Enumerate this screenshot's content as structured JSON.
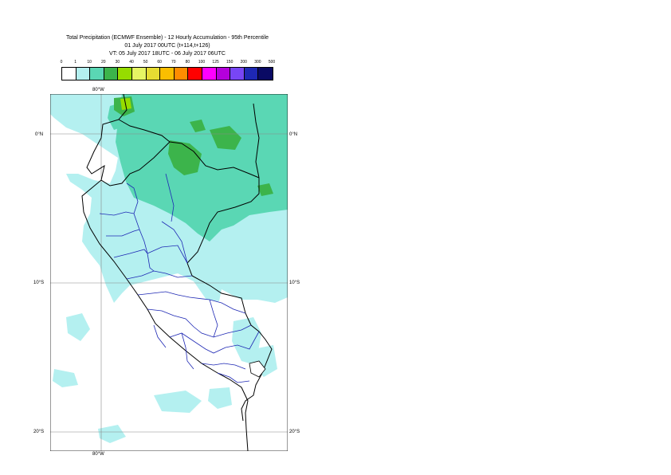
{
  "titles": {
    "line1": "Total Precipitation (ECMWF Ensemble) - 12 Hourly Accumulation - 95th Percentile",
    "line2": "01 July 2017 00UTC (t+114,t+126)",
    "line3": "VT: 05 July 2017 18UTC - 06 July 2017 06UTC"
  },
  "legend": {
    "labels": [
      "0",
      "1",
      "10",
      "20",
      "30",
      "40",
      "50",
      "60",
      "70",
      "80",
      "100",
      "125",
      "150",
      "200",
      "300",
      "500"
    ],
    "colors": [
      "#ffffff",
      "#b4f0f0",
      "#5ad7b4",
      "#3cb44b",
      "#96dc00",
      "#e6f564",
      "#e6dc32",
      "#fabe00",
      "#ff8c00",
      "#ff0000",
      "#ff00ff",
      "#b400dc",
      "#7846f5",
      "#1e28b4",
      "#0a0a64"
    ]
  },
  "axes": {
    "lon_top": "80°W",
    "lon_bottom": "80°W",
    "lat_0_left": "0°N",
    "lat_0_right": "0°N",
    "lat_10_left": "10°S",
    "lat_10_right": "10°S",
    "lat_20_left": "20°S",
    "lat_20_right": "20°S"
  }
}
